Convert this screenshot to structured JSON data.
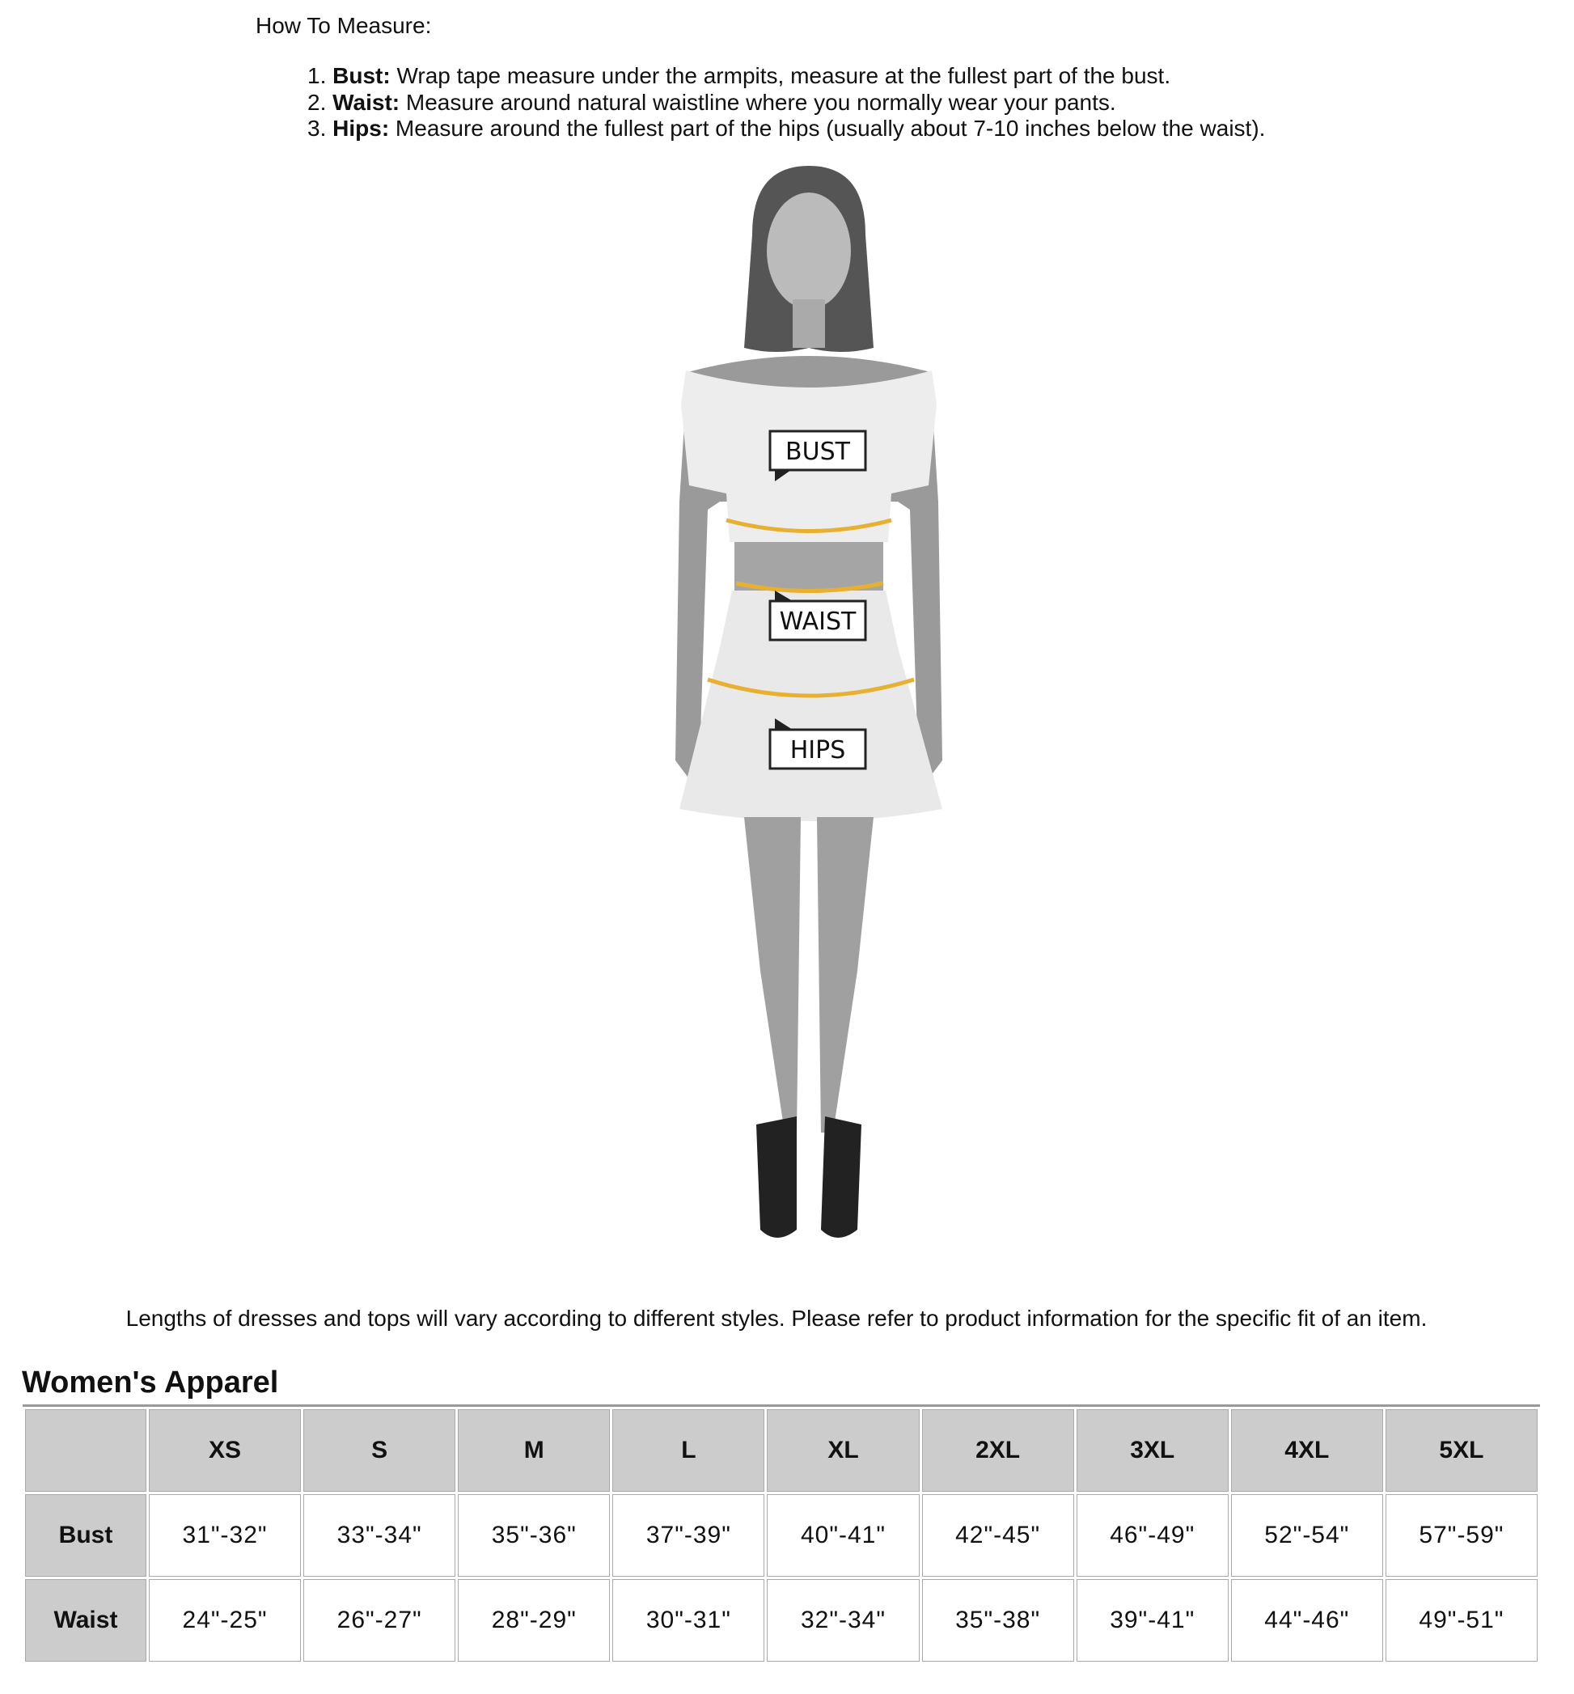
{
  "instructions": {
    "heading": "How To Measure:",
    "steps": [
      {
        "num": "1.",
        "term": "Bust:",
        "text": " Wrap tape measure under the armpits, measure at the fullest part of the bust."
      },
      {
        "num": "2.",
        "term": "Waist:",
        "text": " Measure around natural waistline where you normally wear your pants."
      },
      {
        "num": "3.",
        "term": "Hips:",
        "text": " Measure around the fullest part of the hips (usually about 7-10 inches below the waist)."
      }
    ]
  },
  "figure": {
    "labels": {
      "bust": "BUST",
      "waist": "WAIST",
      "hips": "HIPS"
    },
    "tape_color": "#e8b030"
  },
  "note": "Lengths of dresses and tops will vary according to different styles. Please refer to product information for the specific fit of an item.",
  "size_chart": {
    "title": "Women's Apparel",
    "columns": [
      "",
      "XS",
      "S",
      "M",
      "L",
      "XL",
      "2XL",
      "3XL",
      "4XL",
      "5XL"
    ],
    "rows": [
      {
        "label": "Bust",
        "values": [
          "31\"-32\"",
          "33\"-34\"",
          "35\"-36\"",
          "37\"-39\"",
          "40\"-41\"",
          "42\"-45\"",
          "46\"-49\"",
          "52\"-54\"",
          "57\"-59\""
        ]
      },
      {
        "label": "Waist",
        "values": [
          "24\"-25\"",
          "26\"-27\"",
          "28\"-29\"",
          "30\"-31\"",
          "32\"-34\"",
          "35\"-38\"",
          "39\"-41\"",
          "44\"-46\"",
          "49\"-51\""
        ]
      }
    ]
  }
}
